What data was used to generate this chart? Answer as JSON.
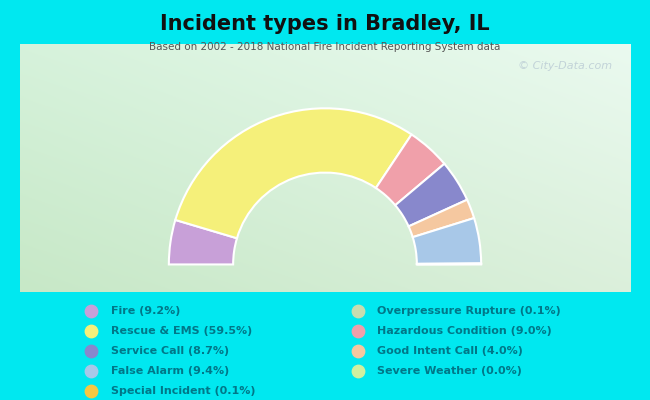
{
  "title": "Incident types in Bradley, IL",
  "subtitle": "Based on 2002 - 2018 National Fire Incident Reporting System data",
  "watermark": "© City-Data.com",
  "outer_bg": "#00e8f0",
  "chart_bg_color": "#ddeedd",
  "legend_text_color": "#007788",
  "title_color": "#111111",
  "subtitle_color": "#555555",
  "legend_items": [
    {
      "label": "Fire (9.2%)",
      "color": "#c8a0d8"
    },
    {
      "label": "Rescue & EMS (59.5%)",
      "color": "#f5f07a"
    },
    {
      "label": "Service Call (8.7%)",
      "color": "#8888cc"
    },
    {
      "label": "False Alarm (9.4%)",
      "color": "#a8c8e8"
    },
    {
      "label": "Special Incident (0.1%)",
      "color": "#f5c842"
    },
    {
      "label": "Overpressure Rupture (0.1%)",
      "color": "#c8ddb0"
    },
    {
      "label": "Hazardous Condition (9.0%)",
      "color": "#f0a0aa"
    },
    {
      "label": "Good Intent Call (4.0%)",
      "color": "#f5c8a0"
    },
    {
      "label": "Severe Weather (0.0%)",
      "color": "#d0f0a0"
    }
  ],
  "draw_order": [
    {
      "label": "Fire",
      "value": 9.2,
      "color": "#c8a0d8"
    },
    {
      "label": "Rescue & EMS",
      "value": 59.5,
      "color": "#f5f07a"
    },
    {
      "label": "Hazardous Condition",
      "value": 9.0,
      "color": "#f0a0aa"
    },
    {
      "label": "Service Call",
      "value": 8.7,
      "color": "#8888cc"
    },
    {
      "label": "Good Intent Call",
      "value": 4.0,
      "color": "#f5c8a0"
    },
    {
      "label": "False Alarm",
      "value": 9.4,
      "color": "#a8c8e8"
    },
    {
      "label": "Overpressure Rupture",
      "value": 0.1,
      "color": "#c8ddb0"
    },
    {
      "label": "Special Incident",
      "value": 0.1,
      "color": "#f5c842"
    },
    {
      "label": "Severe Weather",
      "value": 0.0,
      "color": "#d0f0a0"
    }
  ]
}
